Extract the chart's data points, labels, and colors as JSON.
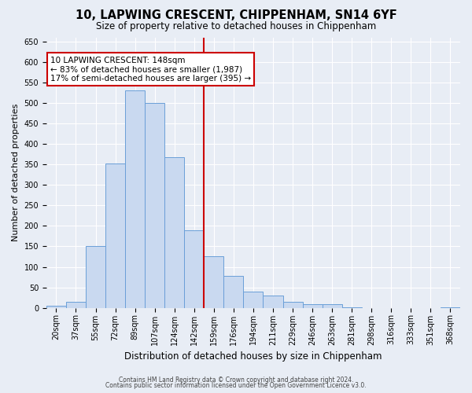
{
  "title": "10, LAPWING CRESCENT, CHIPPENHAM, SN14 6YF",
  "subtitle": "Size of property relative to detached houses in Chippenham",
  "xlabel": "Distribution of detached houses by size in Chippenham",
  "ylabel": "Number of detached properties",
  "bar_labels": [
    "20sqm",
    "37sqm",
    "55sqm",
    "72sqm",
    "89sqm",
    "107sqm",
    "124sqm",
    "142sqm",
    "159sqm",
    "176sqm",
    "194sqm",
    "211sqm",
    "229sqm",
    "246sqm",
    "263sqm",
    "281sqm",
    "298sqm",
    "316sqm",
    "333sqm",
    "351sqm",
    "368sqm"
  ],
  "bar_values": [
    5,
    14,
    150,
    352,
    530,
    500,
    368,
    190,
    125,
    78,
    40,
    30,
    14,
    8,
    8,
    2,
    0,
    0,
    0,
    0,
    1
  ],
  "bar_color": "#c9d9f0",
  "bar_edge_color": "#6a9fd8",
  "vline_color": "#cc0000",
  "annotation_title": "10 LAPWING CRESCENT: 148sqm",
  "annotation_line1": "← 83% of detached houses are smaller (1,987)",
  "annotation_line2": "17% of semi-detached houses are larger (395) →",
  "annotation_box_color": "#ffffff",
  "annotation_box_edge": "#cc0000",
  "ylim": [
    0,
    660
  ],
  "yticks": [
    0,
    50,
    100,
    150,
    200,
    250,
    300,
    350,
    400,
    450,
    500,
    550,
    600,
    650
  ],
  "footer1": "Contains HM Land Registry data © Crown copyright and database right 2024.",
  "footer2": "Contains public sector information licensed under the Open Government Licence v3.0.",
  "bg_color": "#e8edf5",
  "plot_bg_color": "#e8edf5",
  "title_fontsize": 10.5,
  "subtitle_fontsize": 8.5,
  "xlabel_fontsize": 8.5,
  "ylabel_fontsize": 8,
  "tick_fontsize": 7,
  "annotation_fontsize": 7.5,
  "footer_fontsize": 5.5
}
